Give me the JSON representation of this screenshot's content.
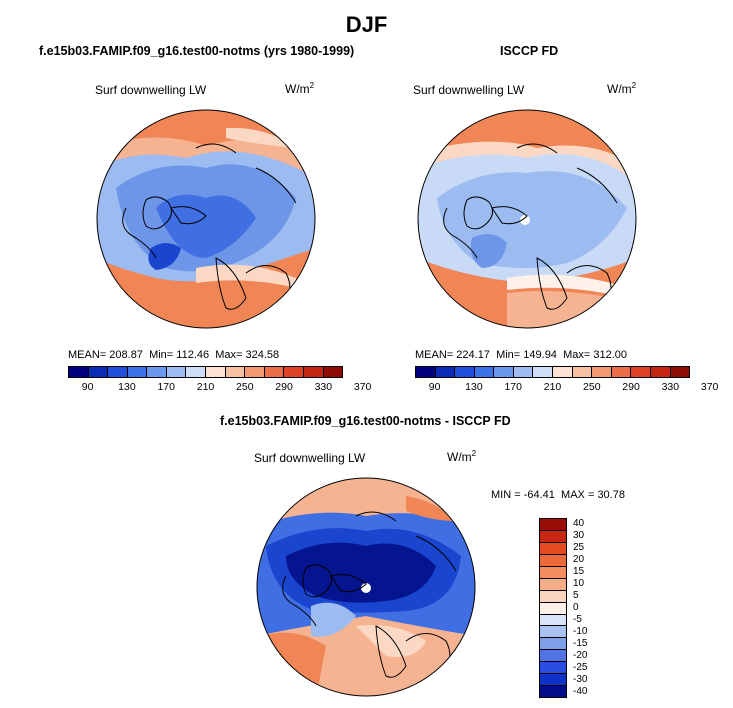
{
  "title": "DJF",
  "panels": {
    "model": {
      "title": "f.e15b03.FAMIP.f09_g16.test00-notms (yrs 1980-1999)",
      "variable": "Surf downwelling LW",
      "units_base": "W/m",
      "units_exp": "2",
      "mean_label": "MEAN=",
      "mean": "208.87",
      "min_label": "Min=",
      "min": "112.46",
      "max_label": "Max=",
      "max": "324.58"
    },
    "obs": {
      "title": "ISCCP FD",
      "variable": "Surf downwelling LW",
      "units_base": "W/m",
      "units_exp": "2",
      "mean_label": "MEAN=",
      "mean": "224.17",
      "min_label": "Min=",
      "min": "149.94",
      "max_label": "Max=",
      "max": "312.00"
    },
    "diff": {
      "title": "f.e15b03.FAMIP.f09_g16.test00-notms - ISCCP FD",
      "variable": "Surf downwelling LW",
      "units_base": "W/m",
      "units_exp": "2",
      "min_label": "MIN =",
      "min": "-64.41",
      "max_label": "MAX =",
      "max": "30.78"
    }
  },
  "colorbar_top": {
    "ticks": [
      "90",
      "130",
      "170",
      "210",
      "250",
      "290",
      "330",
      "370"
    ],
    "colors": [
      "#00007f",
      "#0a2bb5",
      "#1f4fd8",
      "#3d73e8",
      "#6b98ee",
      "#a0bdf3",
      "#cfdef7",
      "#fbe2d2",
      "#f7c1a3",
      "#f39a75",
      "#ec6d4a",
      "#de4226",
      "#c42510",
      "#8f0c05"
    ]
  },
  "colorbar_diff": {
    "labels": [
      "40",
      "30",
      "25",
      "20",
      "15",
      "10",
      "5",
      "0",
      "-5",
      "-10",
      "-15",
      "-20",
      "-25",
      "-30",
      "-40"
    ],
    "colors": [
      "#9a0d06",
      "#c92810",
      "#e24a20",
      "#ee6a3c",
      "#f48c5d",
      "#f6ae88",
      "#fad3bc",
      "#fdf0e8",
      "#d9e4f8",
      "#a9c2f1",
      "#7f9fe9",
      "#5273e5",
      "#2b4ee0",
      "#0f33c9",
      "#000c8a"
    ]
  },
  "map_colors": {
    "warm": "#f08656",
    "warm_light": "#f6b392",
    "warm_pale": "#fbd8c4",
    "neutral": "#fdf1ea",
    "cool_pale": "#c9daf6",
    "cool_light": "#9cbbf0",
    "cool": "#6d95e8",
    "cool_mid": "#3f6fe2",
    "cool_dark": "#1a45cf",
    "deep": "#05158f",
    "coast": "#000000"
  }
}
